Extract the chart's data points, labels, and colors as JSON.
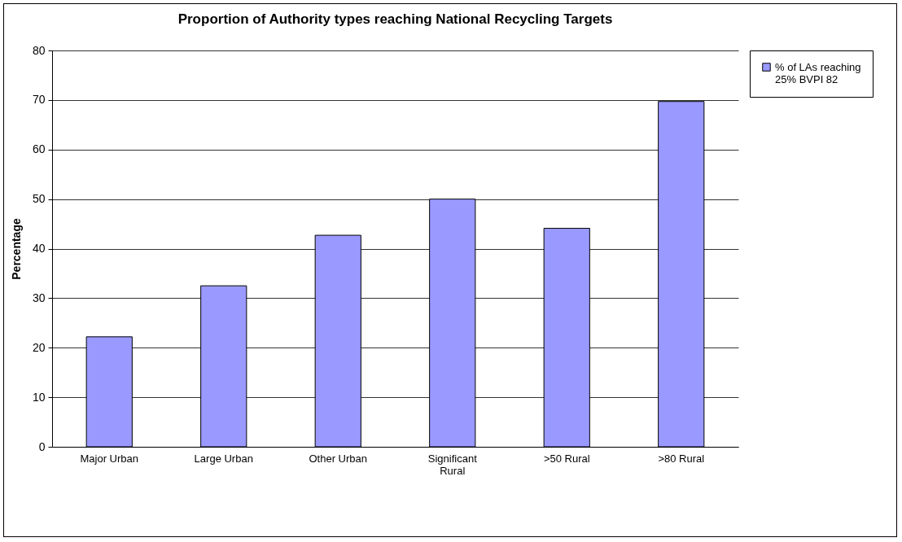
{
  "chart_data": {
    "type": "bar",
    "title": "Proportion of Authority types reaching National Recycling Targets",
    "ylabel": "Percentage",
    "categories": [
      "Major Urban",
      "Large Urban",
      "Other Urban",
      "Significant Rural",
      ">50 Rural",
      ">80 Rural"
    ],
    "series": [
      {
        "name": "% of LAs reaching 25% BVPI 82",
        "color": "#9999ff",
        "values": [
          22.2,
          32.5,
          42.7,
          50,
          44.1,
          69.7
        ]
      }
    ],
    "ylim": [
      0,
      80
    ],
    "yticks": [
      0,
      10,
      20,
      30,
      40,
      50,
      60,
      70,
      80
    ],
    "grid": "y",
    "legend": "right"
  }
}
